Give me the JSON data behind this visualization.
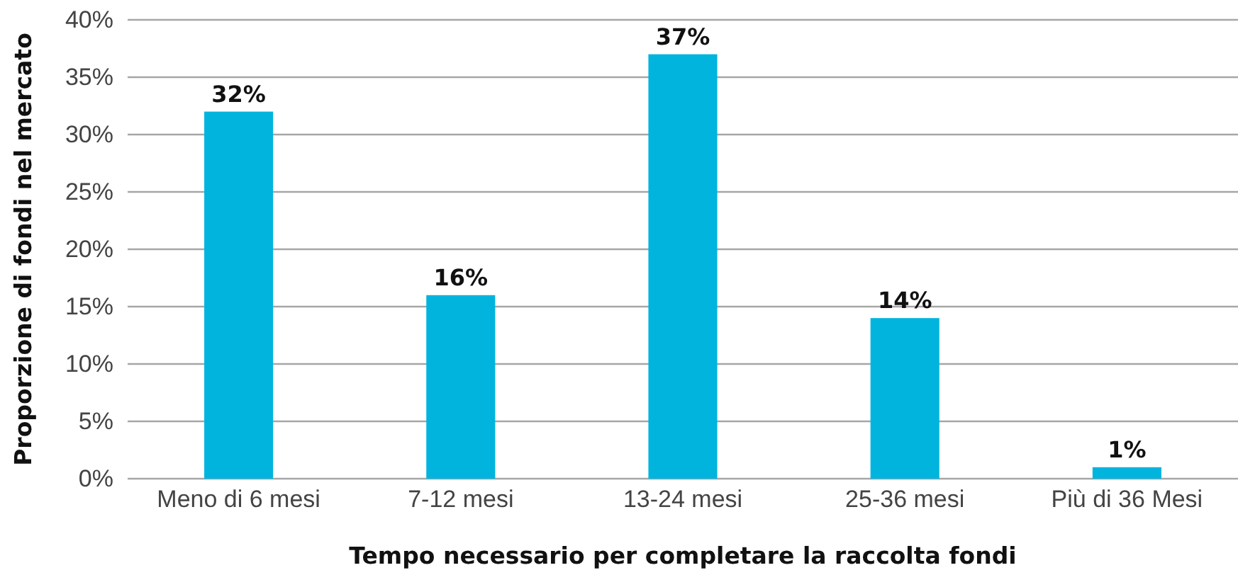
{
  "chart_data": {
    "type": "bar",
    "xlabel": "Tempo necessario per completare la raccolta fondi",
    "ylabel": "Proporzione di fondi nel mercato",
    "categories": [
      "Meno di 6 mesi",
      "7-12 mesi",
      "13-24 mesi",
      "25-36 mesi",
      "Più di 36 Mesi"
    ],
    "values": [
      32,
      16,
      37,
      14,
      1
    ],
    "value_labels": [
      "32%",
      "16%",
      "37%",
      "14%",
      "1%"
    ],
    "color": "#00b4de",
    "ylim": [
      0,
      40
    ],
    "yticks": [
      {
        "value": 0,
        "label": "0%"
      },
      {
        "value": 5,
        "label": "5%"
      },
      {
        "value": 10,
        "label": "10%"
      },
      {
        "value": 15,
        "label": "15%"
      },
      {
        "value": 20,
        "label": "20%"
      },
      {
        "value": 25,
        "label": "25%"
      },
      {
        "value": 30,
        "label": "30%"
      },
      {
        "value": 35,
        "label": "35%"
      },
      {
        "value": 40,
        "label": "40%"
      }
    ],
    "grid": "y"
  }
}
